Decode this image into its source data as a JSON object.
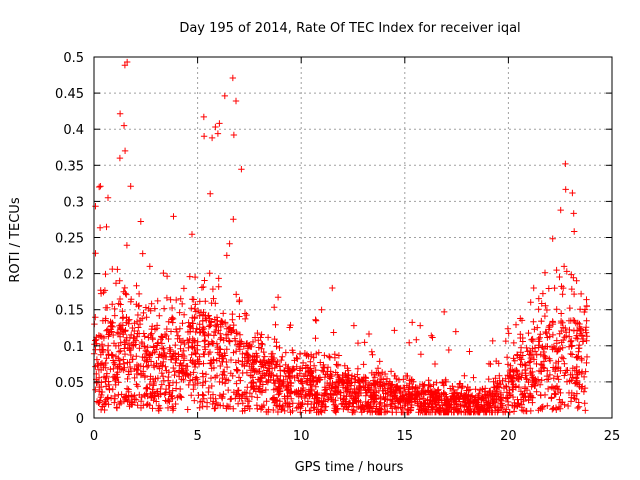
{
  "chart_data": {
    "type": "scatter",
    "title": "Day 195 of 2014, Rate Of TEC Index for receiver iqal",
    "xlabel": "GPS time / hours",
    "ylabel": "ROTI / TECUs",
    "xlim": [
      0,
      25
    ],
    "ylim": [
      0,
      0.5
    ],
    "x_ticks": [
      0,
      5,
      10,
      15,
      20,
      25
    ],
    "x_tick_labels": [
      "0",
      "5",
      "10",
      "15",
      "20",
      "25"
    ],
    "y_ticks": [
      0,
      0.05,
      0.1,
      0.15,
      0.2,
      0.25,
      0.3,
      0.35,
      0.4,
      0.45,
      0.5
    ],
    "y_tick_labels": [
      "0",
      "0.05",
      "0.1",
      "0.15",
      "0.2",
      "0.25",
      "0.3",
      "0.35",
      "0.4",
      "0.45",
      "0.5"
    ],
    "grid": true,
    "marker": "+",
    "color": "#ff0000",
    "x_data_end": 23.8,
    "envelope": [
      {
        "t": 0.0,
        "base": 0.05,
        "spread": 0.12,
        "peak": 0.32
      },
      {
        "t": 1.5,
        "base": 0.06,
        "spread": 0.14,
        "peak": 0.49
      },
      {
        "t": 3.0,
        "base": 0.05,
        "spread": 0.12,
        "peak": 0.26
      },
      {
        "t": 4.0,
        "base": 0.05,
        "spread": 0.12,
        "peak": 0.3
      },
      {
        "t": 5.3,
        "base": 0.07,
        "spread": 0.14,
        "peak": 0.42
      },
      {
        "t": 6.7,
        "base": 0.05,
        "spread": 0.13,
        "peak": 0.47
      },
      {
        "t": 8.0,
        "base": 0.04,
        "spread": 0.08,
        "peak": 0.25
      },
      {
        "t": 10.0,
        "base": 0.03,
        "spread": 0.06,
        "peak": 0.12
      },
      {
        "t": 11.5,
        "base": 0.03,
        "spread": 0.06,
        "peak": 0.18
      },
      {
        "t": 13.0,
        "base": 0.025,
        "spread": 0.05,
        "peak": 0.12
      },
      {
        "t": 15.0,
        "base": 0.02,
        "spread": 0.04,
        "peak": 0.13
      },
      {
        "t": 17.0,
        "base": 0.015,
        "spread": 0.035,
        "peak": 0.15
      },
      {
        "t": 18.5,
        "base": 0.015,
        "spread": 0.03,
        "peak": 0.13
      },
      {
        "t": 19.5,
        "base": 0.02,
        "spread": 0.04,
        "peak": 0.1
      },
      {
        "t": 20.5,
        "base": 0.04,
        "spread": 0.08,
        "peak": 0.16
      },
      {
        "t": 21.5,
        "base": 0.05,
        "spread": 0.12,
        "peak": 0.25
      },
      {
        "t": 22.8,
        "base": 0.06,
        "spread": 0.15,
        "peak": 0.35
      },
      {
        "t": 23.8,
        "base": 0.05,
        "spread": 0.13,
        "peak": 0.32
      }
    ],
    "notable_points": [
      {
        "x": 1.6,
        "y": 0.493
      },
      {
        "x": 6.7,
        "y": 0.471
      },
      {
        "x": 5.3,
        "y": 0.417
      },
      {
        "x": 1.45,
        "y": 0.405
      },
      {
        "x": 6.75,
        "y": 0.392
      },
      {
        "x": 5.7,
        "y": 0.388
      },
      {
        "x": 1.5,
        "y": 0.37
      },
      {
        "x": 22.75,
        "y": 0.352
      },
      {
        "x": 1.25,
        "y": 0.36
      },
      {
        "x": 0.25,
        "y": 0.32
      },
      {
        "x": 11.5,
        "y": 0.18
      },
      {
        "x": 16.9,
        "y": 0.147
      }
    ]
  }
}
